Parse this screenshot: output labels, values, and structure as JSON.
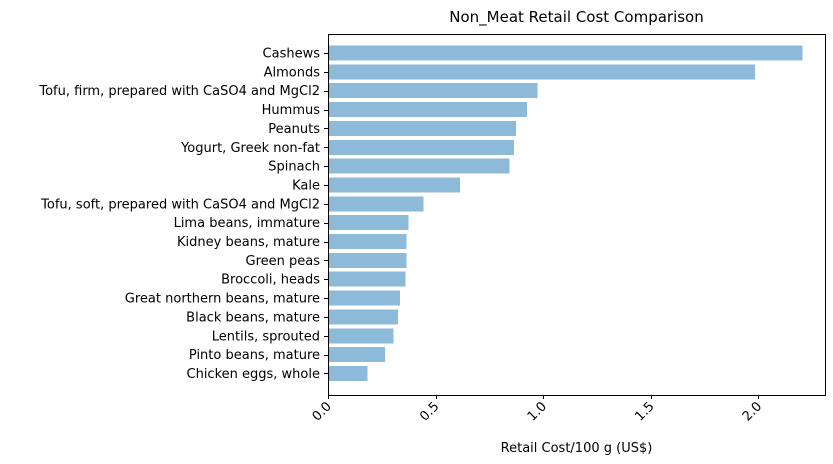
{
  "chart_data": {
    "type": "bar",
    "orientation": "horizontal",
    "title": "Non_Meat Retail Cost Comparison",
    "xlabel": "Retail Cost/100 g (US$)",
    "ylabel": "",
    "xlim": [
      0,
      2.31
    ],
    "xticks": [
      0.0,
      0.5,
      1.0,
      1.5,
      2.0
    ],
    "xtick_labels": [
      "0.0",
      "0.5",
      "1.0",
      "1.5",
      "2.0"
    ],
    "xtick_rotation": 45,
    "grid": false,
    "bar_color": "#8ebad9",
    "categories": [
      "Cashews",
      "Almonds",
      "Tofu, firm, prepared with CaSO4 and MgCl2",
      "Hummus",
      "Peanuts",
      "Yogurt, Greek non-fat",
      "Spinach",
      "Kale",
      "Tofu, soft, prepared with CaSO4 and MgCl2",
      "Lima beans, immature",
      "Kidney beans, mature",
      "Green peas",
      "Broccoli, heads",
      "Great northern beans, mature",
      "Black beans, mature",
      "Lentils, sprouted",
      "Pinto beans, mature",
      "Chicken eggs, whole"
    ],
    "values": [
      2.2,
      1.98,
      0.97,
      0.92,
      0.87,
      0.86,
      0.84,
      0.61,
      0.44,
      0.37,
      0.36,
      0.36,
      0.355,
      0.33,
      0.32,
      0.3,
      0.26,
      0.18
    ]
  }
}
